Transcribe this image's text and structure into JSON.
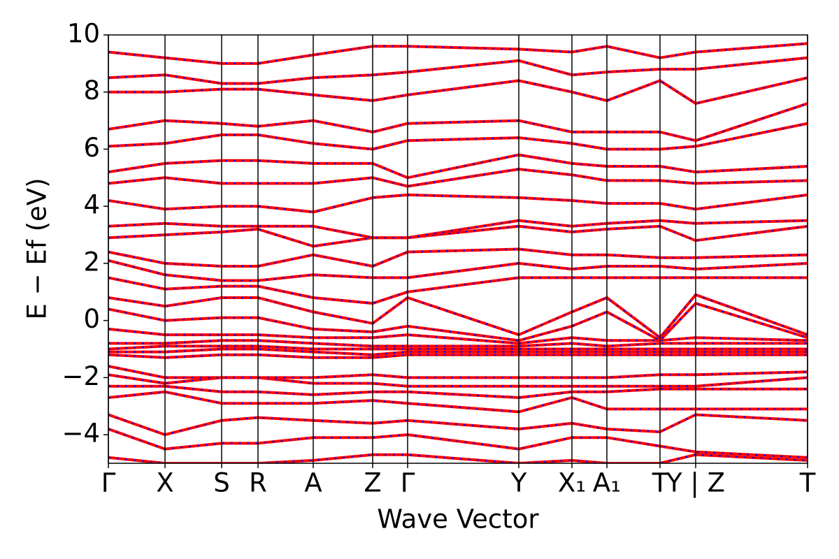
{
  "chart_data": {
    "type": "line",
    "xlabel": "Wave Vector",
    "ylabel": "E − Ef (eV)",
    "x": [
      0,
      0.324,
      0.648,
      0.856,
      1.172,
      1.512,
      1.712,
      2.348,
      2.652,
      2.852,
      3.156,
      3.36,
      4.0
    ],
    "xlim": [
      0,
      4.0
    ],
    "xticks": [
      {
        "value": 0,
        "label": "Γ"
      },
      {
        "value": 0.324,
        "label": "X"
      },
      {
        "value": 0.648,
        "label": "S"
      },
      {
        "value": 0.856,
        "label": "R"
      },
      {
        "value": 1.172,
        "label": "A"
      },
      {
        "value": 1.512,
        "label": "Z"
      },
      {
        "value": 1.712,
        "label": "Γ"
      },
      {
        "value": 2.348,
        "label": "Y"
      },
      {
        "value": 2.652,
        "label": "X₁"
      },
      {
        "value": 2.852,
        "label": "A₁"
      },
      {
        "value": 3.156,
        "label": "T"
      },
      {
        "value": 3.36,
        "label": "Y | Z"
      },
      {
        "value": 4.0,
        "label": "T"
      }
    ],
    "ylim": [
      -5,
      10
    ],
    "yticks": [
      {
        "value": -4,
        "label": "−4"
      },
      {
        "value": -2,
        "label": "−2"
      },
      0,
      2,
      4,
      6,
      8,
      10
    ],
    "line_color": "#ff0000",
    "dash_color": "#0000ff",
    "series": [
      {
        "values": [
          -4.8,
          -5,
          -5,
          -5,
          -4.9,
          -4.7,
          -4.7,
          -5,
          -4.9,
          -5,
          -5,
          -4.7,
          -4.9
        ]
      },
      {
        "values": [
          -3.8,
          -4.5,
          -4.3,
          -4.3,
          -4.1,
          -4.1,
          -4,
          -4.5,
          -4.1,
          -4.1,
          -4.4,
          -4.6,
          -4.8
        ]
      },
      {
        "values": [
          -3.3,
          -4.0,
          -3.5,
          -3.4,
          -3.5,
          -3.6,
          -3.5,
          -3.8,
          -3.6,
          -3.8,
          -3.9,
          -3.3,
          -3.5
        ]
      },
      {
        "values": [
          -2.7,
          -2.5,
          -2.9,
          -2.9,
          -2.9,
          -2.8,
          -2.9,
          -3.2,
          -2.7,
          -3.1,
          -3.1,
          -3.1,
          -3.1
        ]
      },
      {
        "values": [
          -2.3,
          -2.3,
          -2.5,
          -2.5,
          -2.6,
          -2.5,
          -2.5,
          -2.7,
          -2.5,
          -2.5,
          -2.4,
          -2.4,
          -2.4
        ]
      },
      {
        "values": [
          -1.9,
          -2.2,
          -2.0,
          -2.0,
          -2.2,
          -2.2,
          -2.3,
          -2.3,
          -2.3,
          -2.3,
          -2.3,
          -2.3,
          -2.0
        ]
      },
      {
        "values": [
          -1.6,
          -2.0,
          -2.0,
          -2.0,
          -2.0,
          -1.9,
          -2.0,
          -2.0,
          -2.0,
          -2.0,
          -1.9,
          -1.9,
          -1.8
        ]
      },
      {
        "values": [
          -1.2,
          -1.3,
          -1.2,
          -1.2,
          -1.3,
          -1.3,
          -1.2,
          -1.2,
          -1.2,
          -1.2,
          -1.2,
          -1.2,
          -1.2
        ]
      },
      {
        "values": [
          -1.1,
          -1.1,
          -1.0,
          -1.0,
          -1.1,
          -1.2,
          -1.1,
          -1.1,
          -1.1,
          -1.1,
          -1.1,
          -1.1,
          -1.1
        ]
      },
      {
        "values": [
          -1.0,
          -0.9,
          -0.9,
          -0.9,
          -1.0,
          -1.0,
          -1.0,
          -1.0,
          -1.0,
          -1.0,
          -1.0,
          -1.0,
          -1.0
        ]
      },
      {
        "values": [
          -0.8,
          -0.8,
          -0.7,
          -0.7,
          -0.8,
          -0.9,
          -0.9,
          -0.9,
          -0.8,
          -0.9,
          -0.8,
          -0.8,
          -0.8
        ]
      },
      {
        "values": [
          -0.3,
          -0.5,
          -0.5,
          -0.5,
          -0.6,
          -0.6,
          -0.5,
          -0.8,
          -0.6,
          -0.7,
          -0.7,
          -0.6,
          -0.7
        ]
      },
      {
        "values": [
          0.4,
          0.0,
          0.1,
          0.1,
          -0.3,
          -0.4,
          -0.2,
          -0.7,
          -0.2,
          0.3,
          -0.7,
          0.6,
          -0.6
        ]
      },
      {
        "values": [
          0.8,
          0.5,
          0.8,
          0.8,
          0.3,
          -0.1,
          0.8,
          -0.5,
          0.3,
          0.8,
          -0.6,
          0.9,
          -0.5
        ]
      },
      {
        "values": [
          1.5,
          1.1,
          1.2,
          1.2,
          0.8,
          0.6,
          1.0,
          1.5,
          1.5,
          1.5,
          1.5,
          1.5,
          1.5
        ]
      },
      {
        "values": [
          2.1,
          1.6,
          1.4,
          1.4,
          1.6,
          1.5,
          1.5,
          2.0,
          1.8,
          1.9,
          1.9,
          1.8,
          2.0
        ]
      },
      {
        "values": [
          2.4,
          2.0,
          1.9,
          1.9,
          2.3,
          1.9,
          2.4,
          2.5,
          2.3,
          2.3,
          2.2,
          2.2,
          2.3
        ]
      },
      {
        "values": [
          2.9,
          3.0,
          3.1,
          3.2,
          2.6,
          2.9,
          2.9,
          3.3,
          3.1,
          3.2,
          3.3,
          2.8,
          3.3
        ]
      },
      {
        "values": [
          3.3,
          3.4,
          3.3,
          3.3,
          3.3,
          2.9,
          2.9,
          3.5,
          3.3,
          3.4,
          3.5,
          3.4,
          3.5
        ]
      },
      {
        "values": [
          4.2,
          3.9,
          4.0,
          4.0,
          3.8,
          4.3,
          4.4,
          4.3,
          4.2,
          4.1,
          4.1,
          3.9,
          4.4
        ]
      },
      {
        "values": [
          4.8,
          5.0,
          4.8,
          4.8,
          4.8,
          5.0,
          4.7,
          5.3,
          5.1,
          4.9,
          4.9,
          4.8,
          4.9
        ]
      },
      {
        "values": [
          5.2,
          5.5,
          5.6,
          5.6,
          5.5,
          5.5,
          5.0,
          5.8,
          5.5,
          5.4,
          5.4,
          5.2,
          5.4
        ]
      },
      {
        "values": [
          6.1,
          6.2,
          6.5,
          6.5,
          6.2,
          6.0,
          6.3,
          6.4,
          6.2,
          6.0,
          6.0,
          6.1,
          6.9
        ]
      },
      {
        "values": [
          6.7,
          7.0,
          6.9,
          6.8,
          7.0,
          6.6,
          6.9,
          7.0,
          6.6,
          6.6,
          6.6,
          6.3,
          7.6
        ]
      },
      {
        "values": [
          8.0,
          8.0,
          8.1,
          8.1,
          7.9,
          7.7,
          7.9,
          8.4,
          8.0,
          7.7,
          8.4,
          7.6,
          8.5
        ]
      },
      {
        "values": [
          8.5,
          8.6,
          8.3,
          8.3,
          8.5,
          8.6,
          8.7,
          9.1,
          8.6,
          8.7,
          8.8,
          8.8,
          9.2
        ]
      },
      {
        "values": [
          9.4,
          9.2,
          9.0,
          9.0,
          9.3,
          9.6,
          9.6,
          9.5,
          9.4,
          9.6,
          9.2,
          9.4,
          9.7
        ]
      }
    ]
  }
}
